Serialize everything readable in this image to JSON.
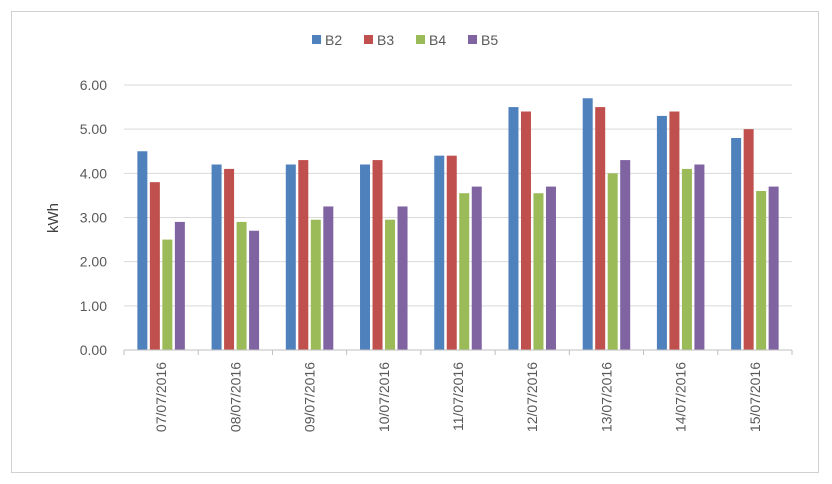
{
  "chart_data": {
    "type": "bar",
    "ylabel": "kWh",
    "xlabel": "",
    "ylim": [
      0,
      6
    ],
    "yticks": [
      "0.00",
      "1.00",
      "2.00",
      "3.00",
      "4.00",
      "5.00",
      "6.00"
    ],
    "grid": true,
    "legend_position": "top",
    "categories": [
      "07/07/2016",
      "08/07/2016",
      "09/07/2016",
      "10/07/2016",
      "11/07/2016",
      "12/07/2016",
      "13/07/2016",
      "14/07/2016",
      "15/07/2016"
    ],
    "series": [
      {
        "name": "B2",
        "color": "#4f81bd",
        "values": [
          4.5,
          4.2,
          4.2,
          4.2,
          4.4,
          5.5,
          5.7,
          5.3,
          4.8
        ]
      },
      {
        "name": "B3",
        "color": "#c0504d",
        "values": [
          3.8,
          4.1,
          4.3,
          4.3,
          4.4,
          5.4,
          5.5,
          5.4,
          5.0
        ]
      },
      {
        "name": "B4",
        "color": "#9bbb59",
        "values": [
          2.5,
          2.9,
          2.95,
          2.95,
          3.55,
          3.55,
          4.0,
          4.1,
          3.6
        ]
      },
      {
        "name": "B5",
        "color": "#8064a2",
        "values": [
          2.9,
          2.7,
          3.25,
          3.25,
          3.7,
          3.7,
          4.3,
          4.2,
          3.7
        ]
      }
    ]
  }
}
